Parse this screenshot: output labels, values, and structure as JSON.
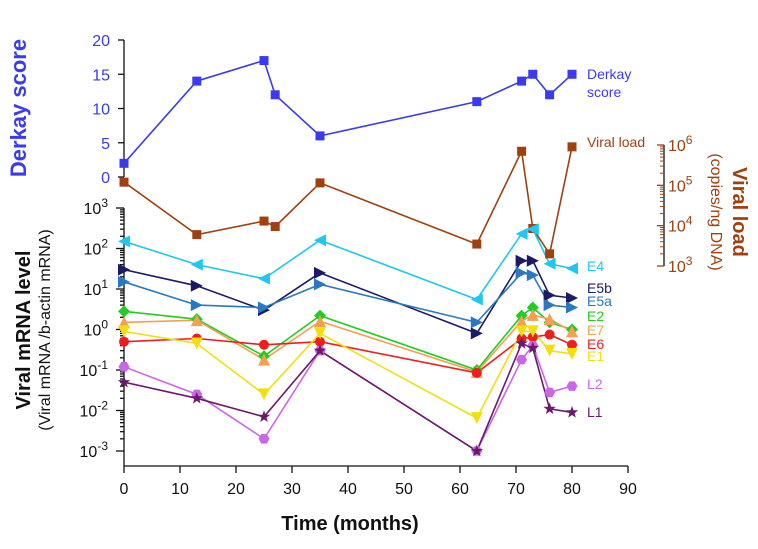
{
  "chart_data": {
    "type": "line",
    "x_axis": {
      "label": "Time (months)",
      "ticks": [
        0,
        10,
        20,
        30,
        40,
        50,
        60,
        70,
        80,
        90
      ],
      "range": [
        0,
        90
      ]
    },
    "derkay": {
      "title": "Derkay score",
      "label_line1": "Derkay",
      "label_line2": "score",
      "ticks": [
        0,
        5,
        10,
        15,
        20
      ],
      "range": [
        0,
        20
      ],
      "color": "#3a3af0",
      "x": [
        0,
        13,
        25,
        27,
        35,
        63,
        71,
        73,
        76,
        80
      ],
      "values": [
        2,
        14,
        17,
        12,
        6,
        11,
        14,
        15,
        12,
        15
      ]
    },
    "viral_load": {
      "series_label": "Viral load",
      "axis_title_line1": "Viral load",
      "axis_title_line2": "(copies/ng DNA)",
      "tick_base": "10",
      "tick_exponents": [
        "3",
        "4",
        "5",
        "6"
      ],
      "range_exp": [
        3,
        6
      ],
      "color": "#a0400f",
      "x": [
        0,
        13,
        25,
        27,
        35,
        63,
        71,
        73,
        76,
        80
      ],
      "values": [
        120000,
        6000,
        13000,
        9500,
        115000,
        3500,
        700000,
        8500,
        2000,
        900000
      ]
    },
    "mrna": {
      "axis_title_line1": "Viral mRNA level",
      "axis_title_line2": "(Viral mRNA /b-actin mRNA)",
      "tick_base": "10",
      "tick_exponents": [
        "-3",
        "-2",
        "-1",
        "0",
        "1",
        "2",
        "3"
      ],
      "tick_values": [
        -3,
        -2,
        -1,
        0,
        1,
        2,
        3
      ],
      "range_exp": [
        -3,
        3
      ],
      "series": [
        {
          "name": "E4",
          "color": "#1ec8ee",
          "marker": "triangle-left",
          "x": [
            0,
            13,
            25,
            35,
            63,
            71,
            73,
            76,
            80
          ],
          "values": [
            150,
            40,
            18,
            160,
            5.5,
            230,
            300,
            42,
            32
          ]
        },
        {
          "name": "E5b",
          "color": "#1a1a66",
          "marker": "triangle-right",
          "x": [
            0,
            13,
            25,
            35,
            63,
            71,
            73,
            76,
            80
          ],
          "values": [
            30,
            12,
            3,
            25,
            0.8,
            50,
            50,
            7,
            6
          ]
        },
        {
          "name": "E5a",
          "color": "#2a78c0",
          "marker": "triangle-right",
          "x": [
            0,
            13,
            25,
            35,
            63,
            71,
            73,
            76,
            80
          ],
          "values": [
            15,
            4,
            3.5,
            13,
            1.5,
            25,
            22,
            4,
            3.5
          ]
        },
        {
          "name": "E2",
          "color": "#22cc22",
          "marker": "diamond",
          "x": [
            0,
            13,
            25,
            35,
            63,
            71,
            73,
            76,
            80
          ],
          "values": [
            2.8,
            1.8,
            0.22,
            2.2,
            0.1,
            2.2,
            3.5,
            1.5,
            1
          ]
        },
        {
          "name": "E7",
          "color": "#f5a050",
          "marker": "triangle-up",
          "x": [
            0,
            13,
            25,
            35,
            63,
            71,
            73,
            76,
            80
          ],
          "values": [
            1.5,
            1.7,
            0.18,
            1.6,
            0.09,
            1.6,
            2.3,
            1.8,
            0.9
          ]
        },
        {
          "name": "E6",
          "color": "#ee1e1e",
          "marker": "circle",
          "x": [
            0,
            13,
            25,
            35,
            63,
            71,
            73,
            76,
            80
          ],
          "values": [
            0.5,
            0.6,
            0.42,
            0.5,
            0.085,
            0.6,
            0.65,
            0.75,
            0.42
          ]
        },
        {
          "name": "E1",
          "color": "#f0e010",
          "marker": "triangle-down",
          "x": [
            0,
            13,
            25,
            35,
            63,
            71,
            73,
            76,
            80
          ],
          "values": [
            0.9,
            0.45,
            0.025,
            0.8,
            0.0065,
            0.9,
            0.9,
            0.3,
            0.25
          ]
        },
        {
          "name": "L2",
          "color": "#cc66e8",
          "marker": "hexagon",
          "x": [
            0,
            13,
            25,
            35,
            63,
            71,
            73,
            76,
            80
          ],
          "values": [
            0.12,
            0.025,
            0.002,
            0.3,
            0.001,
            0.18,
            0.4,
            0.028,
            0.04
          ]
        },
        {
          "name": "L1",
          "color": "#6a1a6a",
          "marker": "star",
          "x": [
            0,
            13,
            25,
            35,
            63,
            71,
            73,
            76,
            80
          ],
          "values": [
            0.05,
            0.02,
            0.007,
            0.3,
            0.001,
            0.45,
            0.35,
            0.011,
            0.009
          ]
        }
      ]
    }
  }
}
